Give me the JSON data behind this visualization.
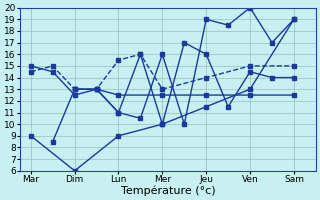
{
  "days": [
    "Mar",
    "Dim",
    "Lun",
    "Mer",
    "Jeu",
    "Ven",
    "Sam"
  ],
  "x_ticks": [
    0,
    1,
    2,
    3,
    4,
    5,
    6
  ],
  "line_color": "#1a3a9e",
  "bg_color": "#c8f0f0",
  "grid_color": "#9bbcbc",
  "xlabel": "Température (°c)",
  "ylim": [
    6,
    20
  ],
  "yticks": [
    6,
    7,
    8,
    9,
    10,
    11,
    12,
    13,
    14,
    15,
    16,
    17,
    18,
    19,
    20
  ],
  "line_diagonal_x": [
    0,
    1,
    2,
    3,
    4,
    5,
    6
  ],
  "line_diagonal_y": [
    9,
    6,
    9,
    10,
    11.5,
    13,
    19
  ],
  "line_flat_x": [
    0,
    0.5,
    1,
    1.5,
    2,
    3,
    4,
    5,
    6
  ],
  "line_flat_y": [
    15,
    14.5,
    12.5,
    13,
    12.5,
    12.5,
    12.5,
    12.5,
    12.5
  ],
  "line_dashed_x": [
    0,
    0.5,
    1,
    1.5,
    2,
    2.5,
    3,
    4,
    5,
    6
  ],
  "line_dashed_y": [
    14.5,
    15,
    13,
    13,
    15.5,
    16,
    13,
    14,
    15,
    15
  ],
  "line_zigzag1_x": [
    0.5,
    1,
    1.5,
    2,
    2.5,
    3,
    3.5,
    4,
    4.5,
    5,
    5.5,
    6
  ],
  "line_zigzag1_y": [
    8.5,
    13,
    13,
    11,
    10.5,
    16,
    10,
    19,
    18.5,
    20,
    17,
    19
  ],
  "line_zigzag2_x": [
    1,
    1.5,
    2,
    2.5,
    3,
    3.5,
    4,
    4.5,
    5,
    5.5,
    6
  ],
  "line_zigzag2_y": [
    13,
    13,
    11,
    16,
    10,
    17,
    16,
    11.5,
    14.5,
    14,
    14
  ]
}
